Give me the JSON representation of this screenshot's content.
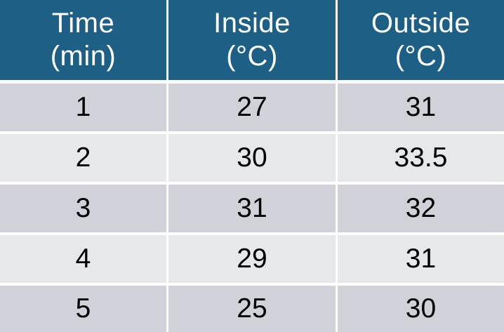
{
  "chart_data": {
    "type": "table",
    "columns": [
      {
        "line1": "Time",
        "line2": "(min)"
      },
      {
        "line1": "Inside",
        "line2": "(°C)"
      },
      {
        "line1": "Outside",
        "line2": "(°C)"
      }
    ],
    "rows": [
      [
        "1",
        "27",
        "31"
      ],
      [
        "2",
        "30",
        "33.5"
      ],
      [
        "3",
        "31",
        "32"
      ],
      [
        "4",
        "29",
        "31"
      ],
      [
        "5",
        "25",
        "30"
      ]
    ]
  },
  "colors": {
    "header_bg": "#1e5f86",
    "header_text": "#ffffff",
    "row_odd": "#cfd3d9",
    "row_even": "#e6e8eb"
  }
}
